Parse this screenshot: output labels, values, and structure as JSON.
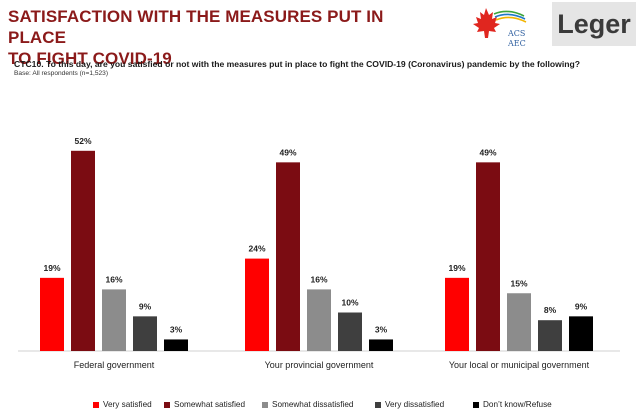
{
  "header": {
    "title_line1": "SATISFACTION WITH THE MEASURES PUT IN PLACE",
    "title_line2": "TO FIGHT COVID-19",
    "acs_logo_text_1": "ACS",
    "acs_logo_text_2": "AEC",
    "leger_logo_text": "Leger"
  },
  "question": "CTC10. To this day, are you satisfied or not with the measures put in place to fight the COVID-19 (Coronavirus) pandemic by the following?",
  "base": "Base: All respondents (n=1,523)",
  "colors": {
    "title": "#8b1a1a",
    "very_satisfied": "#ff0000",
    "somewhat_satisfied": "#7b0c12",
    "somewhat_dissatisfied": "#8c8c8c",
    "very_dissatisfied": "#3f3f3f",
    "dont_know": "#000000"
  },
  "chart_data": {
    "type": "bar",
    "categories": [
      "Federal government",
      "Your provincial government",
      "Your local or municipal government"
    ],
    "series": [
      {
        "name": "Very satisfied",
        "values": [
          19,
          24,
          19
        ],
        "labels": [
          "19%",
          "24%",
          "19%"
        ],
        "color": "#ff0000"
      },
      {
        "name": "Somewhat satisfied",
        "values": [
          52,
          49,
          49
        ],
        "labels": [
          "52%",
          "49%",
          "49%"
        ],
        "color": "#7b0c12"
      },
      {
        "name": "Somewhat dissatisfied",
        "values": [
          16,
          16,
          15
        ],
        "labels": [
          "16%",
          "16%",
          "15%"
        ],
        "color": "#8c8c8c"
      },
      {
        "name": "Very dissatisfied",
        "values": [
          9,
          10,
          8
        ],
        "labels": [
          "9%",
          "10%",
          "8%"
        ],
        "color": "#3f3f3f"
      },
      {
        "name": "Don’t know/Refuse",
        "values": [
          3,
          3,
          9
        ],
        "labels": [
          "3%",
          "3%",
          "9%"
        ],
        "color": "#000000"
      }
    ],
    "ylim": [
      0,
      60
    ],
    "grid": false,
    "legend_position": "bottom"
  }
}
